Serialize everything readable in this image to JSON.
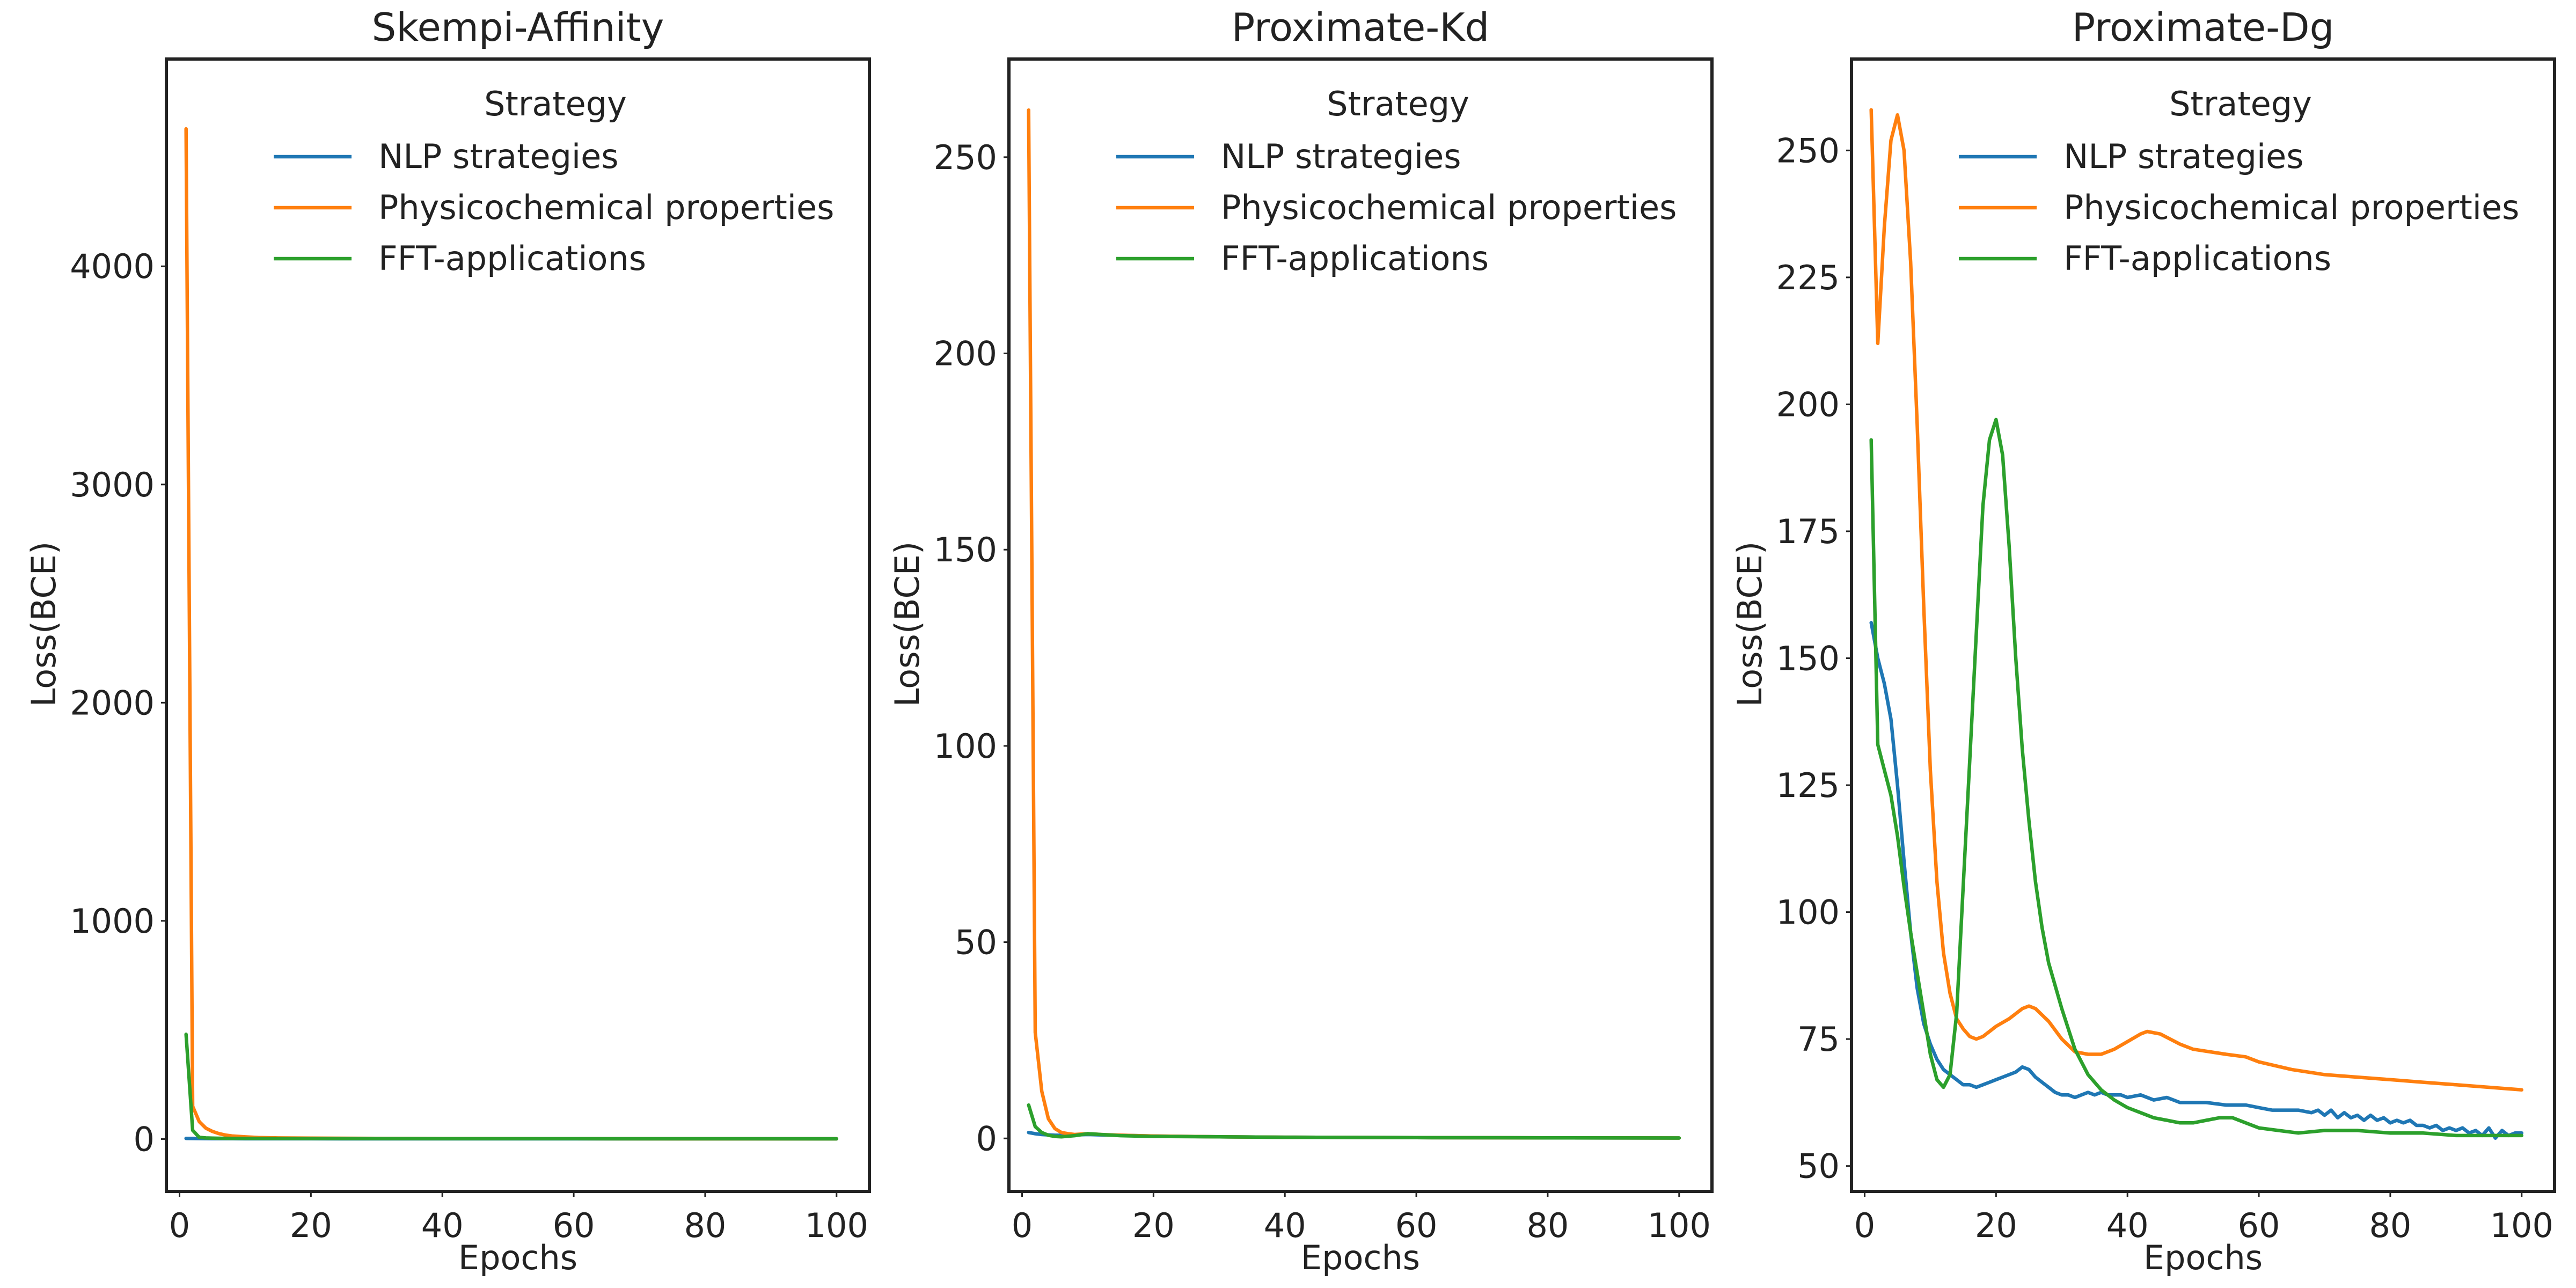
{
  "colors": {
    "nlp": "#1f77b4",
    "phys": "#ff7f0e",
    "fft": "#2ca02c",
    "axis": "#222222"
  },
  "chart_data": [
    {
      "type": "line",
      "title": "Skempi-Affinity",
      "xlabel": "Epochs",
      "ylabel": "Loss(BCE)",
      "xlim": [
        -2,
        105
      ],
      "ylim": [
        -240,
        4950
      ],
      "xticks": [
        0,
        20,
        40,
        60,
        80,
        100
      ],
      "yticks": [
        0,
        1000,
        2000,
        3000,
        4000
      ],
      "legend": {
        "title": "Strategy",
        "position": "top-right"
      },
      "series": [
        {
          "name": "NLP strategies",
          "color_key": "nlp",
          "x": [
            1,
            2,
            3,
            4,
            5,
            6,
            8,
            10,
            15,
            20,
            30,
            40,
            60,
            80,
            100
          ],
          "y": [
            3,
            2.5,
            2.2,
            2,
            1.8,
            1.6,
            1.5,
            1.4,
            1.3,
            1.2,
            1.1,
            1,
            1,
            1,
            1
          ]
        },
        {
          "name": "Physicochemical properties",
          "color_key": "phys",
          "x": [
            1,
            2,
            3,
            4,
            5,
            6,
            7,
            8,
            10,
            12,
            15,
            20,
            30,
            40,
            60,
            80,
            100
          ],
          "y": [
            4630,
            150,
            80,
            50,
            35,
            25,
            18,
            14,
            10,
            7,
            5,
            4,
            3,
            2,
            1.5,
            1,
            1
          ]
        },
        {
          "name": "FFT-applications",
          "color_key": "fft",
          "x": [
            1,
            2,
            3,
            4,
            5,
            6,
            8,
            10,
            15,
            20,
            30,
            40,
            60,
            80,
            100
          ],
          "y": [
            480,
            40,
            8,
            5,
            4,
            3.5,
            3,
            2.8,
            2.5,
            2.2,
            2,
            1.8,
            1.5,
            1.2,
            1
          ]
        }
      ]
    },
    {
      "type": "line",
      "title": "Proximate-Kd",
      "xlabel": "Epochs",
      "ylabel": "Loss(BCE)",
      "xlim": [
        -2,
        105
      ],
      "ylim": [
        -13.5,
        275
      ],
      "xticks": [
        0,
        20,
        40,
        60,
        80,
        100
      ],
      "yticks": [
        0,
        50,
        100,
        150,
        200,
        250
      ],
      "legend": {
        "title": "Strategy",
        "position": "top-right"
      },
      "series": [
        {
          "name": "NLP strategies",
          "color_key": "nlp",
          "x": [
            1,
            2,
            3,
            4,
            5,
            6,
            8,
            10,
            12,
            15,
            20,
            30,
            40,
            60,
            80,
            100
          ],
          "y": [
            1.5,
            1.2,
            1.0,
            0.9,
            0.8,
            0.8,
            0.9,
            1.0,
            0.9,
            0.8,
            0.6,
            0.4,
            0.3,
            0.2,
            0.15,
            0.1
          ]
        },
        {
          "name": "Physicochemical properties",
          "color_key": "phys",
          "x": [
            1,
            2,
            3,
            4,
            5,
            6,
            7,
            8,
            10,
            12,
            15,
            20,
            30,
            40,
            60,
            80,
            100
          ],
          "y": [
            262,
            27,
            12,
            5,
            2.5,
            1.5,
            1.2,
            1.0,
            1.2,
            1.0,
            0.8,
            0.6,
            0.4,
            0.3,
            0.2,
            0.15,
            0.1
          ]
        },
        {
          "name": "FFT-applications",
          "color_key": "fft",
          "x": [
            1,
            2,
            3,
            4,
            5,
            6,
            8,
            10,
            12,
            15,
            20,
            30,
            40,
            60,
            80,
            100
          ],
          "y": [
            8.5,
            3.0,
            1.5,
            0.8,
            0.5,
            0.4,
            0.7,
            1.2,
            1.0,
            0.7,
            0.5,
            0.4,
            0.3,
            0.2,
            0.15,
            0.1
          ]
        }
      ]
    },
    {
      "type": "line",
      "title": "Proximate-Dg",
      "xlabel": "Epochs",
      "ylabel": "Loss(BCE)",
      "xlim": [
        -2,
        105
      ],
      "ylim": [
        45,
        268
      ],
      "xticks": [
        0,
        20,
        40,
        60,
        80,
        100
      ],
      "yticks": [
        50,
        75,
        100,
        125,
        150,
        175,
        200,
        225,
        250
      ],
      "legend": {
        "title": "Strategy",
        "position": "top-right"
      },
      "series": [
        {
          "name": "NLP strategies",
          "color_key": "nlp",
          "x": [
            1,
            2,
            3,
            4,
            5,
            6,
            7,
            8,
            9,
            10,
            11,
            12,
            13,
            14,
            15,
            16,
            17,
            18,
            19,
            20,
            21,
            22,
            23,
            24,
            25,
            26,
            27,
            28,
            29,
            30,
            31,
            32,
            33,
            34,
            35,
            36,
            37,
            38,
            39,
            40,
            42,
            44,
            46,
            48,
            50,
            52,
            55,
            58,
            60,
            62,
            64,
            66,
            68,
            69,
            70,
            71,
            72,
            73,
            74,
            75,
            76,
            77,
            78,
            79,
            80,
            81,
            82,
            83,
            84,
            85,
            86,
            87,
            88,
            89,
            90,
            91,
            92,
            93,
            94,
            95,
            96,
            97,
            98,
            99,
            100
          ],
          "y": [
            157,
            150,
            145,
            138,
            125,
            110,
            96,
            85,
            78,
            74,
            71,
            69,
            68,
            67,
            66,
            66,
            65.5,
            66,
            66.5,
            67,
            67.5,
            68,
            68.5,
            69.5,
            69,
            67.5,
            66.5,
            65.5,
            64.5,
            64,
            64,
            63.5,
            64,
            64.5,
            64,
            64.5,
            64,
            64,
            64,
            63.5,
            64,
            63,
            63.5,
            62.5,
            62.5,
            62.5,
            62,
            62,
            61.5,
            61,
            61,
            61,
            60.5,
            61,
            60,
            61,
            59.5,
            60.5,
            59.5,
            60,
            59,
            60,
            59,
            59.5,
            58.5,
            59,
            58.5,
            59,
            58,
            58,
            57.5,
            58,
            57,
            57.5,
            57,
            57.5,
            56.5,
            57,
            56,
            57.5,
            55.5,
            57,
            56,
            56.5,
            56.5
          ]
        },
        {
          "name": "Physicochemical properties",
          "color_key": "phys",
          "x": [
            1,
            2,
            3,
            4,
            5,
            6,
            7,
            8,
            9,
            10,
            11,
            12,
            13,
            14,
            15,
            16,
            17,
            18,
            19,
            20,
            22,
            24,
            25,
            26,
            28,
            30,
            32,
            34,
            36,
            38,
            40,
            42,
            43,
            45,
            48,
            50,
            55,
            58,
            60,
            65,
            70,
            75,
            80,
            85,
            90,
            95,
            100
          ],
          "y": [
            258,
            212,
            235,
            252,
            257,
            250,
            228,
            196,
            160,
            128,
            106,
            92,
            84,
            79,
            77,
            75.5,
            75,
            75.5,
            76.5,
            77.5,
            79,
            81,
            81.5,
            81,
            78.5,
            75,
            72.5,
            72,
            72,
            73,
            74.5,
            76,
            76.5,
            76,
            74,
            73,
            72,
            71.5,
            70.5,
            69,
            68,
            67.5,
            67,
            66.5,
            66,
            65.5,
            65
          ]
        },
        {
          "name": "FFT-applications",
          "color_key": "fft",
          "x": [
            1,
            2,
            3,
            4,
            5,
            6,
            7,
            8,
            9,
            10,
            11,
            12,
            13,
            14,
            15,
            16,
            17,
            18,
            19,
            20,
            21,
            22,
            23,
            24,
            25,
            26,
            27,
            28,
            30,
            32,
            34,
            36,
            38,
            40,
            42,
            44,
            46,
            48,
            50,
            52,
            54,
            56,
            58,
            60,
            63,
            66,
            70,
            75,
            80,
            85,
            90,
            95,
            100
          ],
          "y": [
            193,
            133,
            128,
            123,
            115,
            105,
            96,
            88,
            80,
            72,
            67,
            65.5,
            68,
            80,
            105,
            130,
            155,
            180,
            193,
            197,
            190,
            172,
            150,
            132,
            118,
            106,
            97,
            90,
            81,
            73,
            68,
            65,
            63,
            61.5,
            60.5,
            59.5,
            59,
            58.5,
            58.5,
            59,
            59.5,
            59.5,
            58.5,
            57.5,
            57,
            56.5,
            57,
            57,
            56.5,
            56.5,
            56,
            56,
            56
          ]
        }
      ]
    }
  ]
}
